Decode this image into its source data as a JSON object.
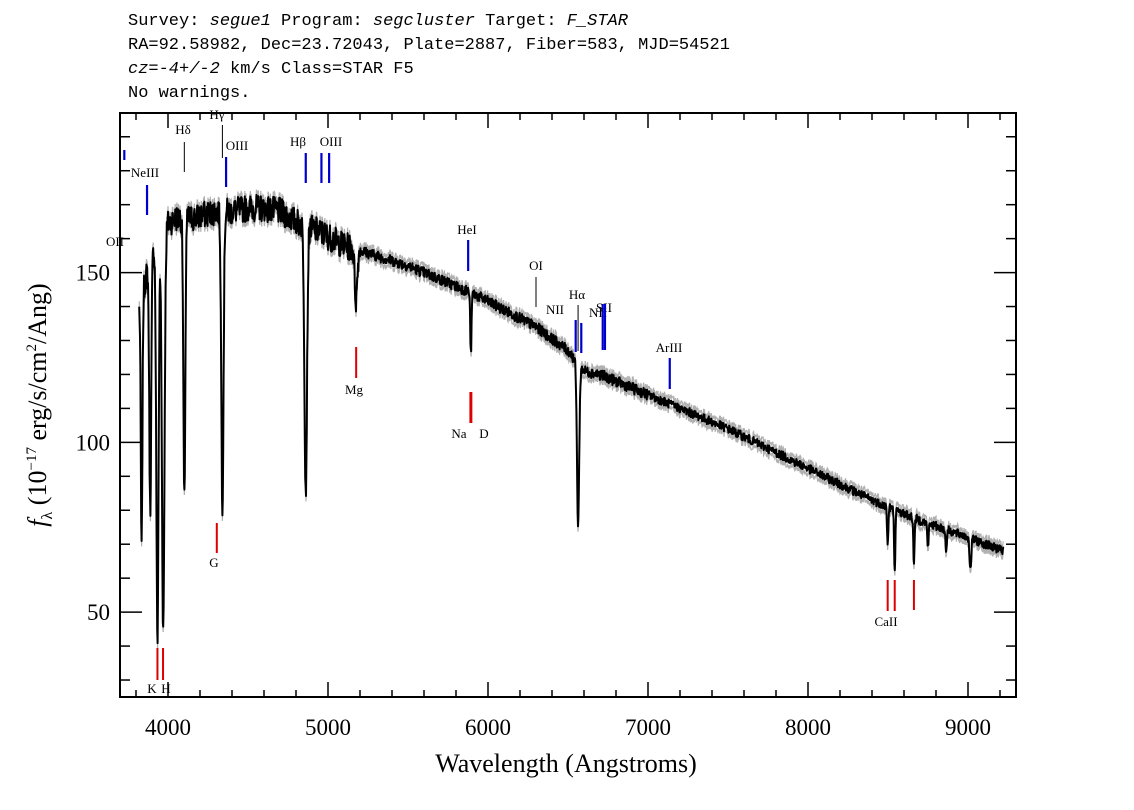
{
  "header": {
    "survey_label": "Survey:",
    "survey": "segue1",
    "program_label": "Program:",
    "program": "segcluster",
    "target_label": "Target:",
    "target": "F_STAR",
    "line2": "RA=92.58982, Dec=23.72043, Plate=2887, Fiber=583, MJD=54521",
    "cz_value": "cz=-4+/-2",
    "cz_rest": " km/s Class=STAR F5",
    "line4": "No warnings."
  },
  "chart_data": {
    "type": "line",
    "title": "",
    "xlabel": "Wavelength (Angstroms)",
    "ylabel": "f_λ (10^-17 erg/s/cm^2/Ang)",
    "xlim": [
      3700,
      9300
    ],
    "ylim": [
      25,
      197
    ],
    "x_ticks": [
      4000,
      5000,
      6000,
      7000,
      8000,
      9000
    ],
    "x_tick_labels": [
      "4000",
      "5000",
      "6000",
      "7000",
      "8000",
      "9000"
    ],
    "y_ticks": [
      50,
      100,
      150
    ],
    "y_tick_labels": [
      "50",
      "100",
      "150"
    ],
    "colors": {
      "spectrum": "#000000",
      "error_band": "#b0b0b0",
      "emission": "#0000cc",
      "absorption": "#dd0000"
    },
    "continuum": [
      [
        3820,
        140
      ],
      [
        3870,
        150
      ],
      [
        3920,
        158
      ],
      [
        3980,
        164
      ],
      [
        4050,
        166
      ],
      [
        4150,
        166
      ],
      [
        4300,
        168
      ],
      [
        4400,
        168
      ],
      [
        4500,
        169
      ],
      [
        4600,
        169
      ],
      [
        4700,
        168
      ],
      [
        4800,
        165
      ],
      [
        4950,
        162
      ],
      [
        5100,
        158
      ],
      [
        5300,
        155
      ],
      [
        5500,
        152
      ],
      [
        5700,
        148
      ],
      [
        5900,
        144
      ],
      [
        6100,
        139
      ],
      [
        6300,
        134
      ],
      [
        6500,
        127
      ],
      [
        6600,
        121
      ],
      [
        6700,
        120
      ],
      [
        6900,
        116
      ],
      [
        7200,
        110
      ],
      [
        7500,
        104
      ],
      [
        7800,
        97
      ],
      [
        8100,
        90
      ],
      [
        8400,
        83
      ],
      [
        8700,
        77
      ],
      [
        9000,
        72
      ],
      [
        9220,
        68
      ]
    ],
    "absorption_dips": [
      [
        3835,
        68,
        5
      ],
      [
        3889,
        80,
        6
      ],
      [
        3934,
        42,
        7
      ],
      [
        3970,
        45,
        8
      ],
      [
        4102,
        82,
        6
      ],
      [
        4340,
        82,
        7
      ],
      [
        4861,
        86,
        8
      ],
      [
        5175,
        142,
        8
      ],
      [
        5893,
        126,
        4
      ],
      [
        6563,
        76,
        7
      ],
      [
        8498,
        70,
        4
      ],
      [
        8542,
        63,
        4
      ],
      [
        8662,
        65,
        4
      ],
      [
        8750,
        69,
        4
      ],
      [
        8863,
        68,
        4
      ],
      [
        9015,
        62,
        5
      ]
    ],
    "emission_lines": [
      {
        "label": "OII",
        "wave": 3727
      },
      {
        "label": "NeIII",
        "wave": 3869
      },
      {
        "label": "Hδ",
        "wave": 4102
      },
      {
        "label": "Hγ",
        "wave": 4340
      },
      {
        "label": "OIII",
        "wave": 4363
      },
      {
        "label": "Hβ",
        "wave": 4861
      },
      {
        "label": "OIII",
        "wave": 4959
      },
      {
        "label": "OIII",
        "wave": 5007
      },
      {
        "label": "HeI",
        "wave": 5876
      },
      {
        "label": "OI",
        "wave": 6300
      },
      {
        "label": "NII",
        "wave": 6548
      },
      {
        "label": "Hα",
        "wave": 6563
      },
      {
        "label": "NII",
        "wave": 6583
      },
      {
        "label": "SII",
        "wave": 6717
      },
      {
        "label": "SII",
        "wave": 6731
      },
      {
        "label": "ArIII",
        "wave": 7136
      }
    ],
    "absorption_lines": [
      {
        "label": "K",
        "wave": 3934
      },
      {
        "label": "H",
        "wave": 3969
      },
      {
        "label": "G",
        "wave": 4305
      },
      {
        "label": "Mg",
        "wave": 5176
      },
      {
        "label": "Na",
        "wave": 5890
      },
      {
        "label": "D",
        "wave": 5896
      },
      {
        "label": "CaII",
        "wave": 8498
      },
      {
        "label": "CaII",
        "wave": 8542
      },
      {
        "label": "CaII",
        "wave": 8662
      }
    ]
  }
}
